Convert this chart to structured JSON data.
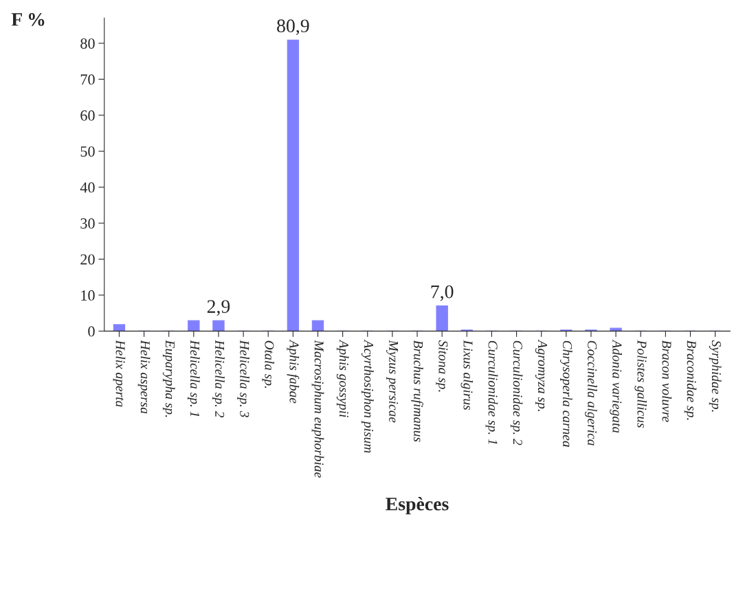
{
  "chart_data": {
    "type": "bar",
    "xlabel": "Espèces",
    "ylabel": "F %",
    "categories": [
      "Helix aperta",
      "Helix aspersa",
      "Euparypha sp.",
      "Helicella sp. 1",
      "Helicella sp. 2",
      "Helicella sp. 3",
      "Otala sp.",
      "Aphis fabae",
      "Macrosiphum euphorbiae",
      "Aphis gossypii",
      "Acyrthosiphon pisum",
      "Myzus persicae",
      "Bruchus rufimanus",
      "Sitona sp.",
      "Lixus algirus",
      "Curculionidae sp. 1",
      "Curculionidae sp. 2",
      "Agromyza sp.",
      "Chrysoperla carnea",
      "Coccinella algerica",
      "Adonia variegata",
      "Polistes gallicus",
      "Bracon voluvre",
      "Braconidae sp.",
      "Syrphidae sp."
    ],
    "values": [
      1.8,
      0,
      0,
      2.9,
      2.9,
      0,
      0,
      80.9,
      2.9,
      0,
      0,
      0,
      0,
      7.0,
      0.3,
      0,
      0,
      0,
      0.3,
      0.3,
      0.8,
      0,
      0,
      0,
      0
    ],
    "value_labels": [
      null,
      null,
      null,
      null,
      "2,9",
      null,
      null,
      "80,9",
      null,
      null,
      null,
      null,
      null,
      "7,0",
      null,
      null,
      null,
      null,
      null,
      null,
      null,
      null,
      null,
      null,
      null
    ],
    "color": "#8080ff",
    "ylim": [
      0,
      87
    ],
    "yticks": [
      0,
      10,
      20,
      30,
      40,
      50,
      60,
      70,
      80
    ],
    "grid": false,
    "legend": false
  }
}
